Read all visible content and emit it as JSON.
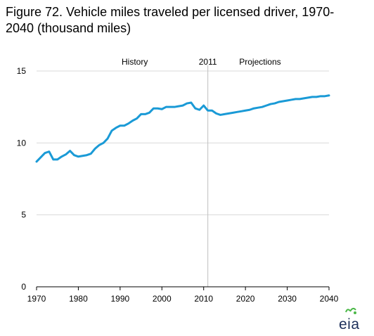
{
  "chart_data": {
    "type": "line",
    "title": "Figure 72. Vehicle miles traveled per licensed driver, 1970-2040 (thousand miles)",
    "xlabel": "",
    "ylabel": "",
    "xlim": [
      1970,
      2040
    ],
    "ylim": [
      0,
      15
    ],
    "x_ticks": [
      1970,
      1980,
      1990,
      2000,
      2010,
      2020,
      2030,
      2040
    ],
    "y_ticks": [
      0,
      5,
      10,
      15
    ],
    "grid": "horizontal",
    "line_color": "#1a9ad6",
    "annotations": {
      "history": "History",
      "divider_year_label": "2011",
      "projections": "Projections",
      "divider_year": 2011
    },
    "series": [
      {
        "x": [
          1970,
          1971,
          1972,
          1973,
          1974,
          1975,
          1976,
          1977,
          1978,
          1979,
          1980,
          1981,
          1982,
          1983,
          1984,
          1985,
          1986,
          1987,
          1988,
          1989,
          1990,
          1991,
          1992,
          1993,
          1994,
          1995,
          1996,
          1997,
          1998,
          1999,
          2000,
          2001,
          2002,
          2003,
          2004,
          2005,
          2006,
          2007,
          2008,
          2009,
          2010,
          2011,
          2012,
          2013,
          2014,
          2015,
          2016,
          2017,
          2018,
          2019,
          2020,
          2021,
          2022,
          2023,
          2024,
          2025,
          2026,
          2027,
          2028,
          2029,
          2030,
          2031,
          2032,
          2033,
          2034,
          2035,
          2036,
          2037,
          2038,
          2039,
          2040
        ],
        "values": [
          8.7,
          9.0,
          9.3,
          9.4,
          8.85,
          8.85,
          9.05,
          9.2,
          9.45,
          9.15,
          9.05,
          9.1,
          9.15,
          9.25,
          9.6,
          9.85,
          10.0,
          10.3,
          10.85,
          11.05,
          11.2,
          11.2,
          11.35,
          11.55,
          11.7,
          12.0,
          12.0,
          12.1,
          12.4,
          12.4,
          12.35,
          12.5,
          12.5,
          12.5,
          12.55,
          12.6,
          12.75,
          12.8,
          12.4,
          12.3,
          12.6,
          12.25,
          12.25,
          12.05,
          11.95,
          12.0,
          12.05,
          12.1,
          12.15,
          12.2,
          12.25,
          12.3,
          12.4,
          12.45,
          12.5,
          12.6,
          12.7,
          12.75,
          12.85,
          12.9,
          12.95,
          13.0,
          13.05,
          13.05,
          13.1,
          13.15,
          13.2,
          13.2,
          13.25,
          13.25,
          13.3
        ]
      }
    ]
  },
  "logo": {
    "text": "eia"
  }
}
